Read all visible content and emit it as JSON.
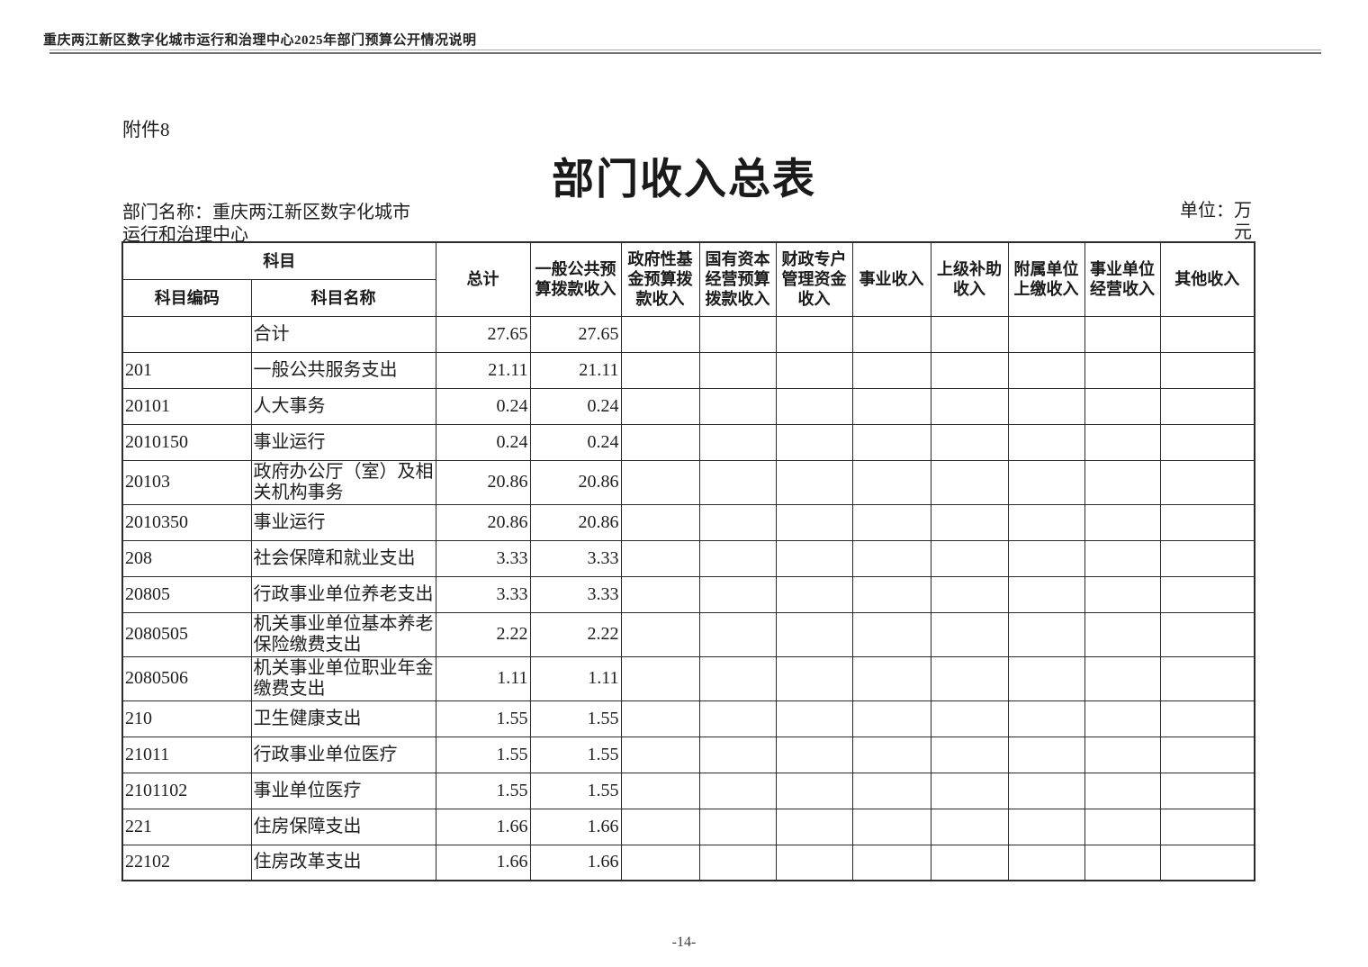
{
  "page": {
    "running_header": "重庆两江新区数字化城市运行和治理中心2025年部门预算公开情况说明",
    "attachment_label": "附件8",
    "title": "部门收入总表",
    "department_label": "部门名称：重庆两江新区数字化城市运行和治理中心",
    "unit_label": "单位：万元",
    "page_number": "-14-"
  },
  "colors": {
    "text": "#1d1d1d",
    "table_border": "#2b2b2b",
    "header_rule": "#6f6f6f",
    "background": "#ffffff"
  },
  "table": {
    "header": {
      "subject": "科目",
      "subject_code": "科目编码",
      "subject_name": "科目名称",
      "columns": [
        "总计",
        "一般公共预算拨款收入",
        "政府性基金预算拨款收入",
        "国有资本经营预算拨款收入",
        "财政专户管理资金收入",
        "事业收入",
        "上级补助收入",
        "附属单位上缴收入",
        "事业单位经营收入",
        "其他收入"
      ]
    },
    "rows": [
      {
        "code": "",
        "name": "合计",
        "values": [
          "27.65",
          "27.65",
          "",
          "",
          "",
          "",
          "",
          "",
          "",
          ""
        ]
      },
      {
        "code": "201",
        "name": "一般公共服务支出",
        "values": [
          "21.11",
          "21.11",
          "",
          "",
          "",
          "",
          "",
          "",
          "",
          ""
        ]
      },
      {
        "code": "20101",
        "name": "人大事务",
        "values": [
          "0.24",
          "0.24",
          "",
          "",
          "",
          "",
          "",
          "",
          "",
          ""
        ]
      },
      {
        "code": "2010150",
        "name": "事业运行",
        "values": [
          "0.24",
          "0.24",
          "",
          "",
          "",
          "",
          "",
          "",
          "",
          ""
        ]
      },
      {
        "code": "20103",
        "name": "政府办公厅（室）及相关机构事务",
        "values": [
          "20.86",
          "20.86",
          "",
          "",
          "",
          "",
          "",
          "",
          "",
          ""
        ]
      },
      {
        "code": "2010350",
        "name": "事业运行",
        "values": [
          "20.86",
          "20.86",
          "",
          "",
          "",
          "",
          "",
          "",
          "",
          ""
        ]
      },
      {
        "code": "208",
        "name": "社会保障和就业支出",
        "values": [
          "3.33",
          "3.33",
          "",
          "",
          "",
          "",
          "",
          "",
          "",
          ""
        ]
      },
      {
        "code": "20805",
        "name": "行政事业单位养老支出",
        "values": [
          "3.33",
          "3.33",
          "",
          "",
          "",
          "",
          "",
          "",
          "",
          ""
        ]
      },
      {
        "code": "2080505",
        "name": "机关事业单位基本养老保险缴费支出",
        "values": [
          "2.22",
          "2.22",
          "",
          "",
          "",
          "",
          "",
          "",
          "",
          ""
        ]
      },
      {
        "code": "2080506",
        "name": "机关事业单位职业年金缴费支出",
        "values": [
          "1.11",
          "1.11",
          "",
          "",
          "",
          "",
          "",
          "",
          "",
          ""
        ]
      },
      {
        "code": "210",
        "name": "卫生健康支出",
        "values": [
          "1.55",
          "1.55",
          "",
          "",
          "",
          "",
          "",
          "",
          "",
          ""
        ]
      },
      {
        "code": "21011",
        "name": "行政事业单位医疗",
        "values": [
          "1.55",
          "1.55",
          "",
          "",
          "",
          "",
          "",
          "",
          "",
          ""
        ]
      },
      {
        "code": "2101102",
        "name": "事业单位医疗",
        "values": [
          "1.55",
          "1.55",
          "",
          "",
          "",
          "",
          "",
          "",
          "",
          ""
        ]
      },
      {
        "code": "221",
        "name": "住房保障支出",
        "values": [
          "1.66",
          "1.66",
          "",
          "",
          "",
          "",
          "",
          "",
          "",
          ""
        ]
      },
      {
        "code": "22102",
        "name": "住房改革支出",
        "values": [
          "1.66",
          "1.66",
          "",
          "",
          "",
          "",
          "",
          "",
          "",
          ""
        ]
      }
    ]
  }
}
